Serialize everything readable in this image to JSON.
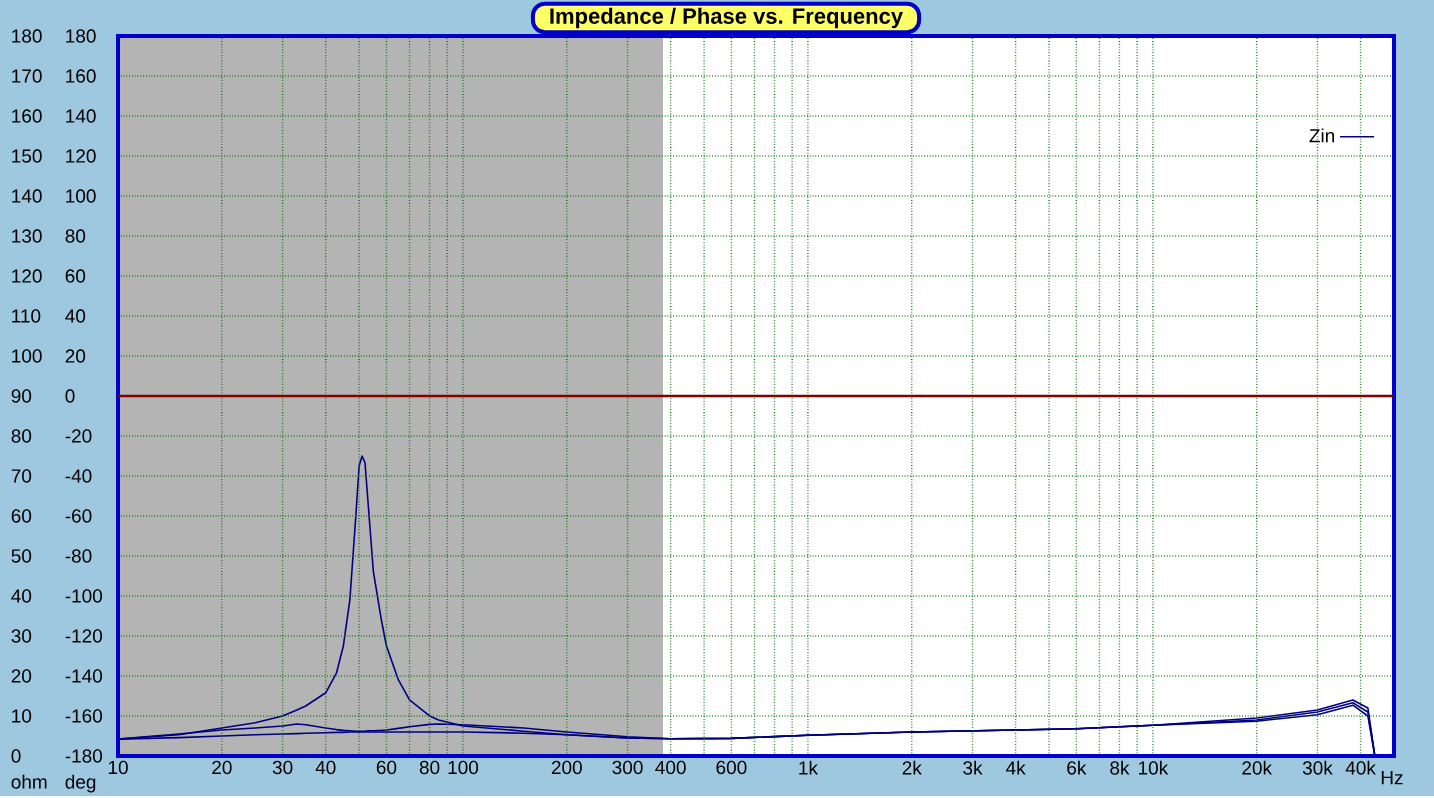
{
  "chart_data": {
    "type": "line",
    "title": "Impedance / Phase vs. Frequency",
    "ylabel": "ohm",
    "y2label": "deg",
    "x": [
      10,
      15,
      20,
      25,
      30,
      33,
      35,
      40,
      43,
      45,
      47,
      49,
      50,
      51,
      52,
      53,
      55,
      58,
      60,
      65,
      70,
      80,
      85,
      100,
      150,
      200,
      300,
      400,
      600,
      1000,
      2000,
      4000,
      6000,
      10000,
      20000,
      30000,
      38000,
      42000,
      44000
    ],
    "series": [
      {
        "name": "Zin",
        "color": "#000080",
        "values": [
          4.2,
          5.3,
          7,
          8.3,
          10,
          11.5,
          12.5,
          15.8,
          20.8,
          27.5,
          39,
          61,
          72.5,
          75,
          73.3,
          64,
          46,
          34,
          27.5,
          19,
          14,
          10,
          9,
          7.5,
          6.2,
          5.3,
          4.5,
          4.3,
          4.4,
          5.2,
          6,
          6.5,
          6.8,
          7.7,
          9.5,
          11.5,
          14,
          12,
          0
        ]
      },
      {
        "color": "#000080",
        "values": [
          4.2,
          5.5,
          6.5,
          7,
          7.5,
          8,
          7.8,
          7,
          6.6,
          6.4,
          6.3,
          6.2,
          6.2,
          6.2,
          6.2,
          6.3,
          6.3,
          6.4,
          6.5,
          6.9,
          7.3,
          7.9,
          8,
          7.8,
          7,
          6,
          4.8,
          4.3,
          4.4,
          5.2,
          6,
          6.5,
          6.8,
          7.7,
          9,
          11,
          13.3,
          11,
          0
        ]
      },
      {
        "color": "#000080",
        "values": [
          4.2,
          4.6,
          5,
          5.3,
          5.5,
          5.6,
          5.7,
          5.8,
          5.9,
          5.9,
          6,
          6,
          6,
          6,
          6,
          6,
          6,
          6,
          6,
          6,
          6,
          6,
          6,
          6,
          5.7,
          5.3,
          4.5,
          4.3,
          4.4,
          5.2,
          6,
          6.5,
          6.8,
          7.7,
          8.7,
          10.3,
          12.7,
          10,
          0
        ]
      }
    ],
    "log": "x",
    "xlim": [
      10,
      50000
    ],
    "xticks": [
      10,
      20,
      30,
      40,
      {
        "value": 50,
        "label": null
      },
      60,
      {
        "value": 70,
        "label": null
      },
      80,
      {
        "value": 90,
        "label": null
      },
      100,
      200,
      300,
      400,
      {
        "value": 500,
        "label": null
      },
      600,
      {
        "value": 700,
        "label": null
      },
      {
        "value": 800,
        "label": null
      },
      {
        "value": 900,
        "label": null
      },
      {
        "value": 1000,
        "label": "1k"
      },
      {
        "value": 2000,
        "label": "2k"
      },
      {
        "value": 3000,
        "label": "3k"
      },
      {
        "value": 4000,
        "label": "4k"
      },
      {
        "value": 5000,
        "label": null
      },
      {
        "value": 6000,
        "label": "6k"
      },
      {
        "value": 7000,
        "label": null
      },
      {
        "value": 8000,
        "label": "8k"
      },
      {
        "value": 9000,
        "label": null
      },
      {
        "value": 10000,
        "label": "10k"
      },
      {
        "value": 20000,
        "label": "20k"
      },
      {
        "value": 30000,
        "label": "30k"
      },
      {
        "value": 40000,
        "label": "40k"
      }
    ],
    "xlabel": "Hz",
    "ylim": [
      0,
      180
    ],
    "yticks": [
      0,
      10,
      20,
      30,
      40,
      50,
      60,
      70,
      80,
      90,
      100,
      110,
      120,
      130,
      140,
      150,
      160,
      170,
      180
    ],
    "y2lim": [
      -180,
      180
    ],
    "y2ticks": [
      -180,
      -160,
      -140,
      -120,
      -100,
      -80,
      -60,
      -40,
      -20,
      0,
      20,
      40,
      60,
      80,
      100,
      120,
      140,
      160,
      180
    ],
    "bands": [
      {
        "axis": "x",
        "from": 10,
        "to": 380,
        "color": "#b4b4b4"
      }
    ],
    "ref_lines": [
      {
        "axis": "y2",
        "value": 0,
        "color": "#800000"
      }
    ],
    "grid": true,
    "legend": "top right"
  }
}
